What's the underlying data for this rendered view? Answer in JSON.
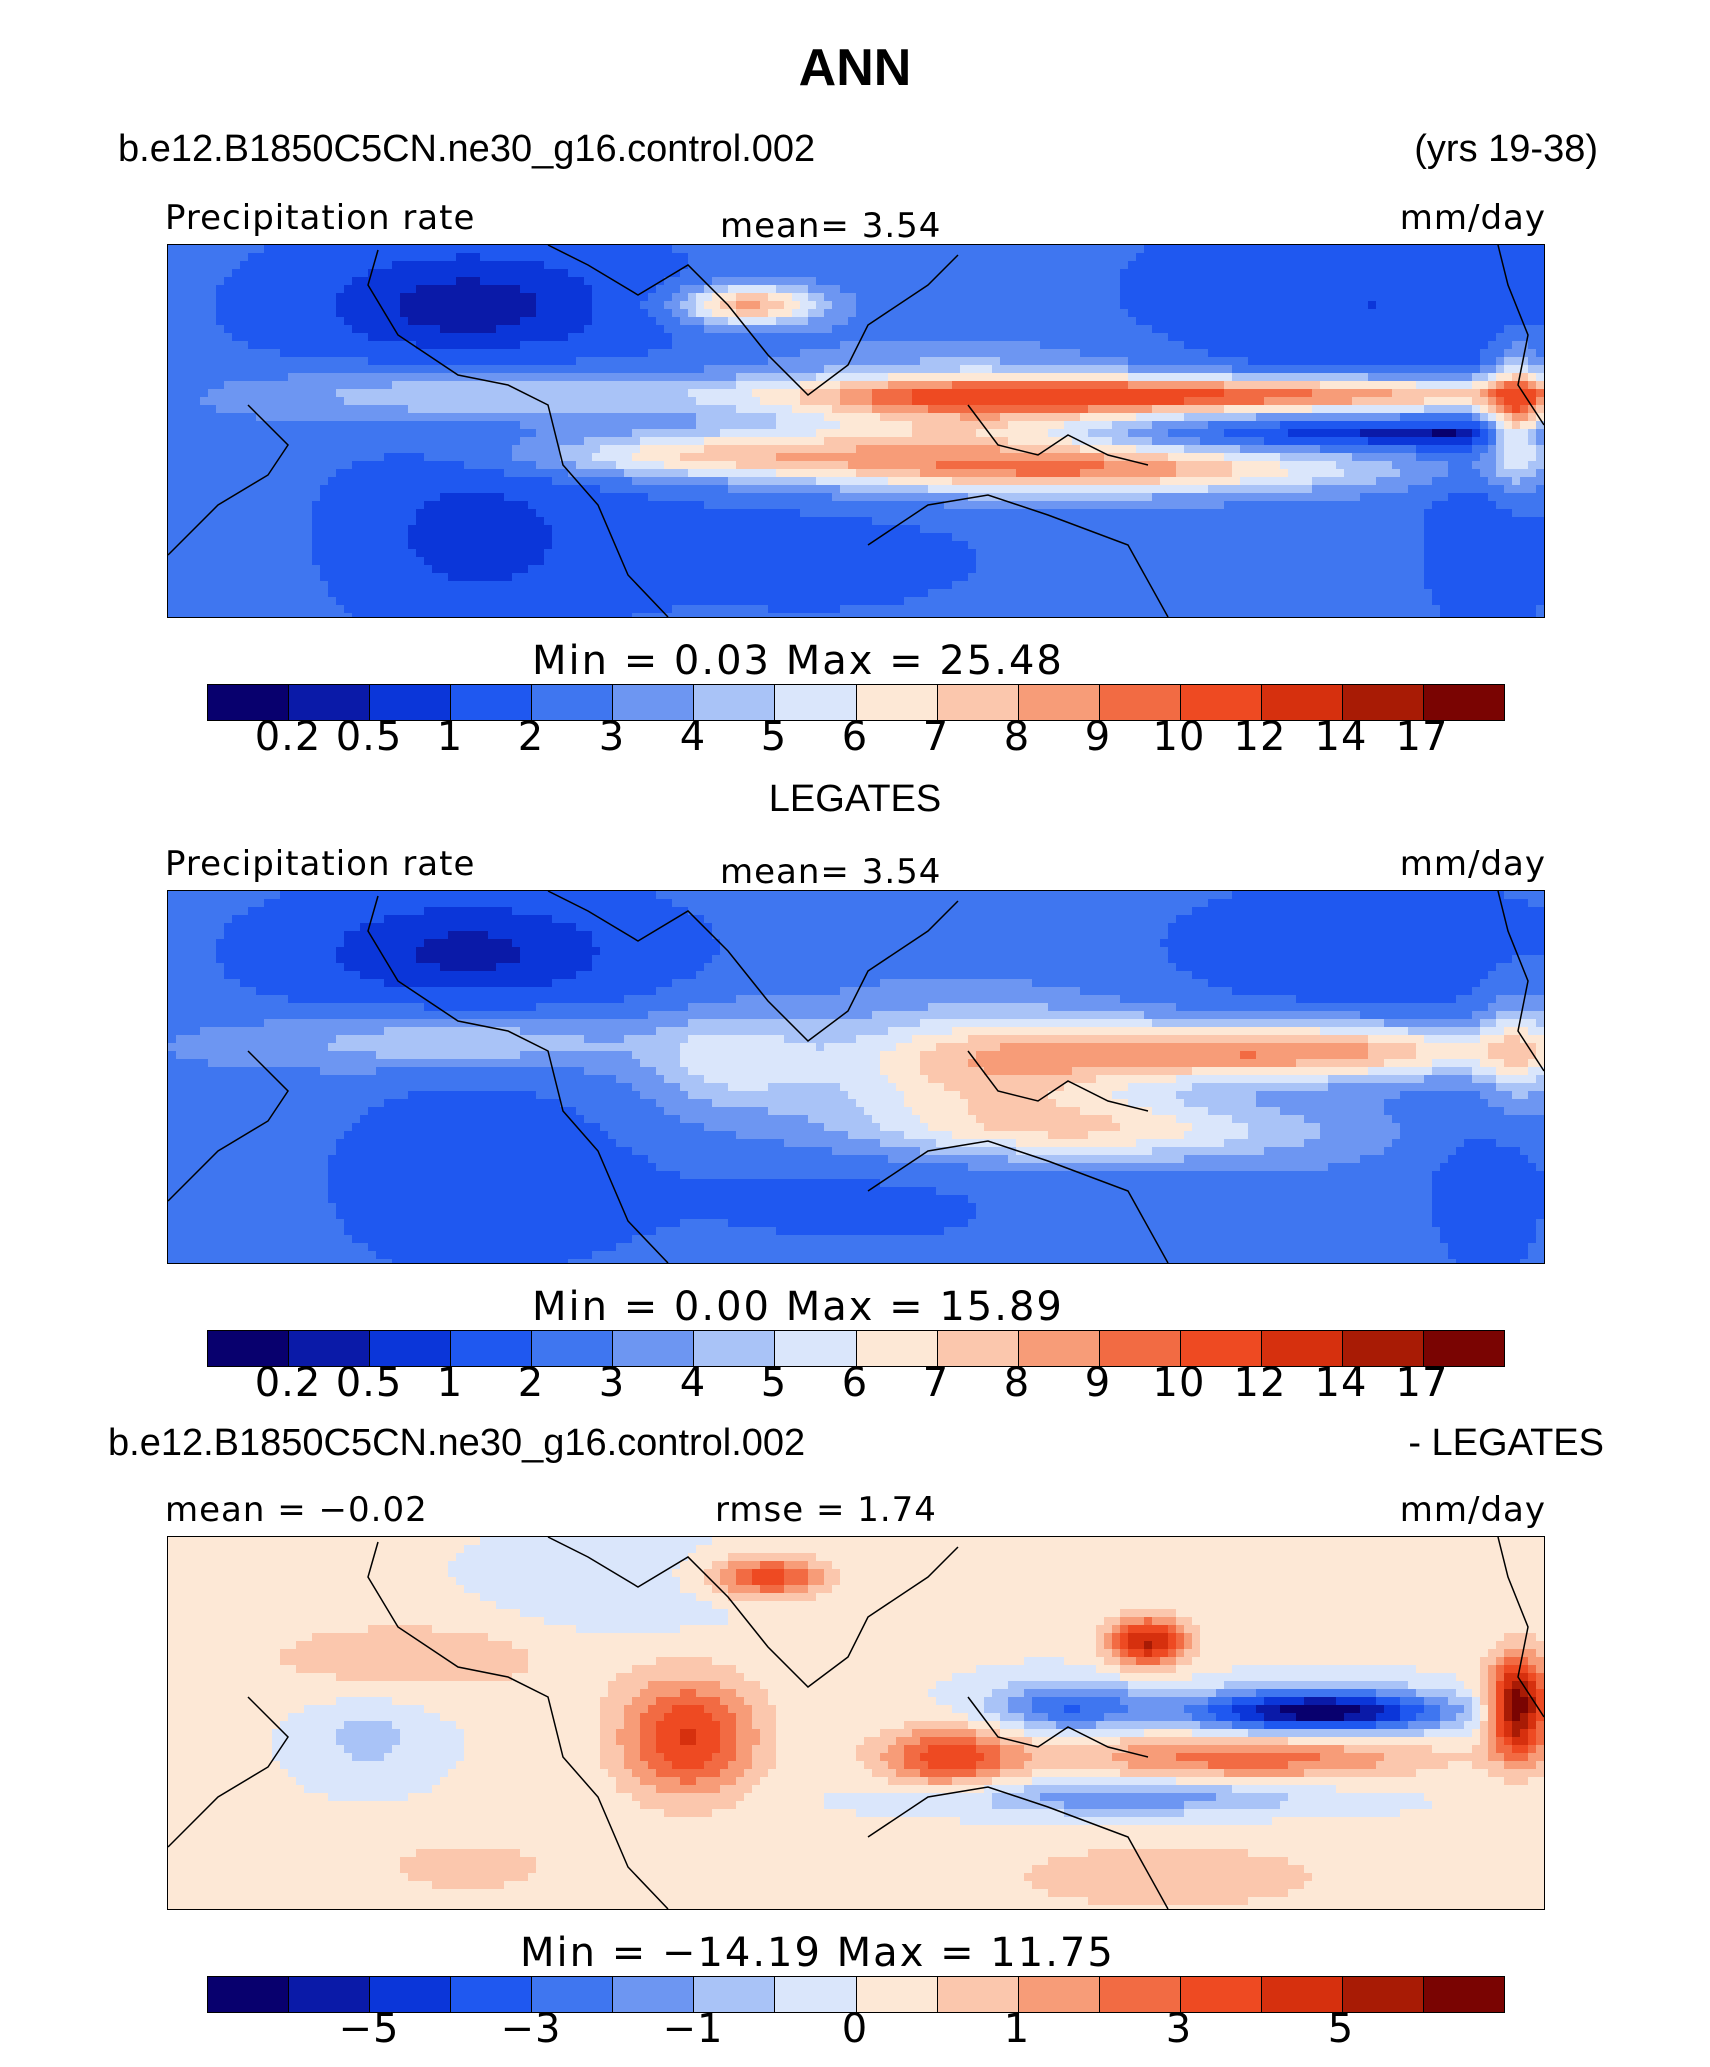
{
  "figure": {
    "title": "ANN",
    "case_name": "b.e12.B1850C5CN.ne30_g16.control.002",
    "years": "(yrs 19-38)",
    "diff_case": "b.e12.B1850C5CN.ne30_g16.control.002",
    "diff_ref": "- LEGATES"
  },
  "panels": [
    {
      "left_label": "Precipitation rate",
      "center_label": "mean=    3.54",
      "right_label": "mm/day",
      "minmax": "Min  =    0.03  Max  =   25.48",
      "palette": "abs"
    },
    {
      "heading": "LEGATES",
      "left_label": "Precipitation rate",
      "center_label": "mean=    3.54",
      "right_label": "mm/day",
      "minmax": "Min  =    0.00  Max  =   15.89",
      "palette": "abs"
    },
    {
      "left_label": "mean =  −0.02",
      "center_label": "rmse =    1.74",
      "right_label": "mm/day",
      "minmax": "Min  = −14.19  Max  =   11.75",
      "palette": "diff"
    }
  ],
  "colors": {
    "abs": [
      "#08006e",
      "#0a1aa8",
      "#0b36d9",
      "#1f58f0",
      "#3f76f0",
      "#6d96f2",
      "#a9c3f7",
      "#dae6fb",
      "#fde8d6",
      "#fbc7ad",
      "#f79c78",
      "#f26b43",
      "#ee4a22",
      "#d6300e",
      "#a81b05",
      "#7a0402"
    ],
    "diff": [
      "#08006e",
      "#0a1aa8",
      "#0b36d9",
      "#1f58f0",
      "#3f76f0",
      "#6d96f2",
      "#a9c3f7",
      "#dae6fb",
      "#fde8d6",
      "#fbc7ad",
      "#f79c78",
      "#f26b43",
      "#ee4a22",
      "#d6300e",
      "#a81b05",
      "#7a0402"
    ]
  },
  "chart_data": [
    {
      "type": "heatmap",
      "title": "ANN",
      "subtitle": "b.e12.B1850C5CN.ne30_g16.control.002 (yrs 19-38)",
      "variable": "Precipitation rate",
      "units": "mm/day",
      "mean": 3.54,
      "min": 0.03,
      "max": 25.48,
      "contour_levels": [
        0.2,
        0.5,
        1,
        2,
        3,
        4,
        5,
        6,
        7,
        8,
        9,
        10,
        12,
        14,
        17
      ],
      "colorbar_labels": [
        "0.2",
        "0.5",
        "1",
        "2",
        "3",
        "4",
        "5",
        "6",
        "7",
        "8",
        "9",
        "10",
        "12",
        "14",
        "17"
      ]
    },
    {
      "type": "heatmap",
      "title": "LEGATES",
      "variable": "Precipitation rate",
      "units": "mm/day",
      "mean": 3.54,
      "min": 0.0,
      "max": 15.89,
      "contour_levels": [
        0.2,
        0.5,
        1,
        2,
        3,
        4,
        5,
        6,
        7,
        8,
        9,
        10,
        12,
        14,
        17
      ],
      "colorbar_labels": [
        "0.2",
        "0.5",
        "1",
        "2",
        "3",
        "4",
        "5",
        "6",
        "7",
        "8",
        "9",
        "10",
        "12",
        "14",
        "17"
      ]
    },
    {
      "type": "heatmap",
      "title": "b.e12.B1850C5CN.ne30_g16.control.002 - LEGATES",
      "units": "mm/day",
      "mean": -0.02,
      "rmse": 1.74,
      "min": -14.19,
      "max": 11.75,
      "colorbar_labels": [
        "−5",
        "−3",
        "−1",
        "0",
        "1",
        "3",
        "5"
      ]
    }
  ]
}
